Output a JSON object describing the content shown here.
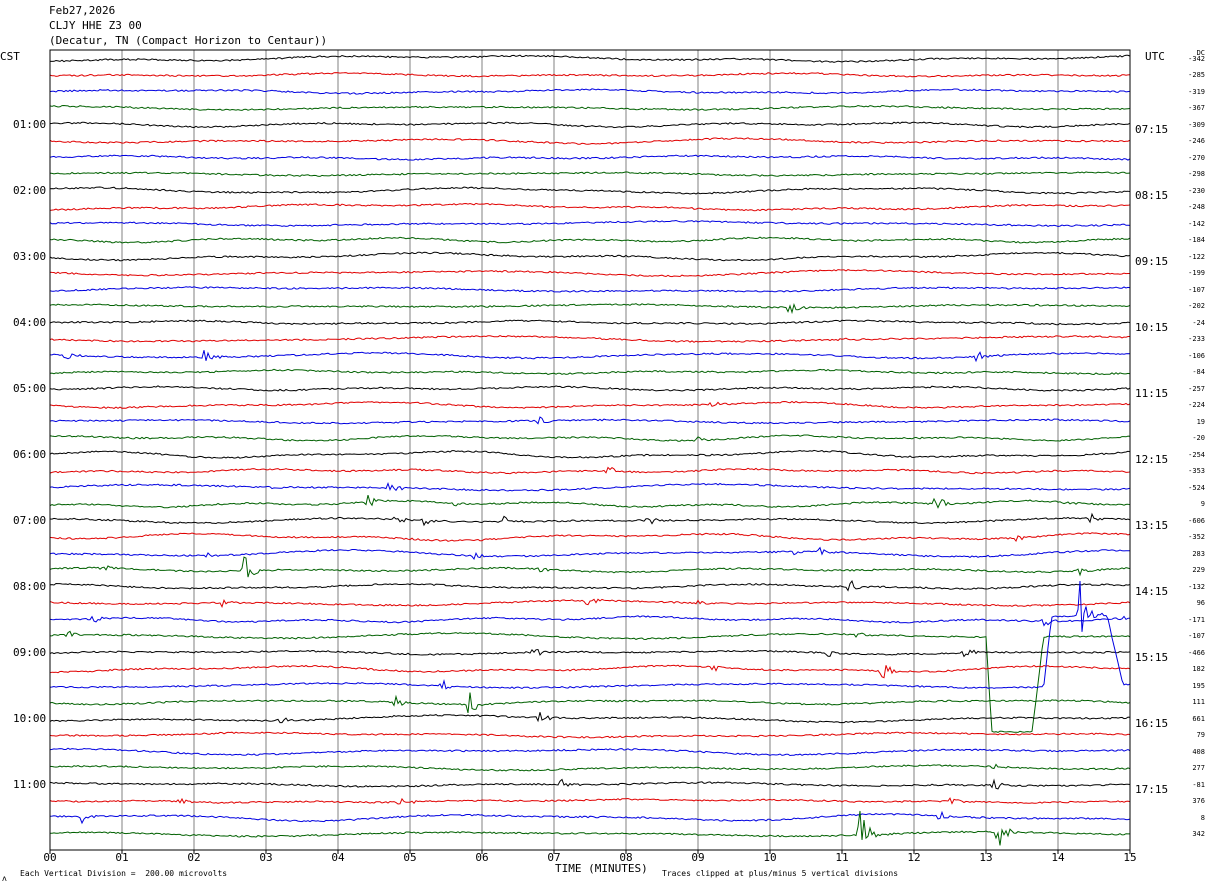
{
  "header": {
    "date": "Feb27,2026",
    "station": "CLJY HHE Z3 00",
    "location": "(Decatur, TN (Compact Horizon to Centaur))"
  },
  "left_axis_label": "CST",
  "right_axis_label": "UTC",
  "dc_label": "DC",
  "footer": {
    "scale_note": "Each Vertical Division =  200.00 microvolts",
    "clip_note": "Traces clipped at plus/minus 5 vertical divisions",
    "corner_mark": "ʌ"
  },
  "colors": {
    "trace_cycle": [
      "#000000",
      "#e00000",
      "#0000e0",
      "#006000"
    ],
    "grid": "#808080",
    "frame": "#000000",
    "background": "#ffffff"
  },
  "chart_data": {
    "type": "line",
    "title": "",
    "xlabel": "TIME (MINUTES)",
    "ylabel": "",
    "xlim": [
      0,
      15
    ],
    "x_ticks": [
      "00",
      "01",
      "02",
      "03",
      "04",
      "05",
      "06",
      "07",
      "08",
      "09",
      "10",
      "11",
      "12",
      "13",
      "14",
      "15"
    ],
    "row_count": 48,
    "row_minutes": 15,
    "vertical_gridlines": true,
    "left_hour_labels": [
      {
        "row": 4,
        "label": "01:00"
      },
      {
        "row": 8,
        "label": "02:00"
      },
      {
        "row": 12,
        "label": "03:00"
      },
      {
        "row": 16,
        "label": "04:00"
      },
      {
        "row": 20,
        "label": "05:00"
      },
      {
        "row": 24,
        "label": "06:00"
      },
      {
        "row": 28,
        "label": "07:00"
      },
      {
        "row": 32,
        "label": "08:00"
      },
      {
        "row": 36,
        "label": "09:00"
      },
      {
        "row": 40,
        "label": "10:00"
      },
      {
        "row": 44,
        "label": "11:00"
      }
    ],
    "right_hour_labels": [
      {
        "row": 4,
        "label": "07:15"
      },
      {
        "row": 8,
        "label": "08:15"
      },
      {
        "row": 12,
        "label": "09:15"
      },
      {
        "row": 16,
        "label": "10:15"
      },
      {
        "row": 20,
        "label": "11:15"
      },
      {
        "row": 24,
        "label": "12:15"
      },
      {
        "row": 28,
        "label": "13:15"
      },
      {
        "row": 32,
        "label": "14:15"
      },
      {
        "row": 36,
        "label": "15:15"
      },
      {
        "row": 40,
        "label": "16:15"
      },
      {
        "row": 44,
        "label": "17:15"
      }
    ],
    "dc_offsets": [
      "-342",
      "-285",
      "-319",
      "-367",
      "-309",
      "-246",
      "-270",
      "-298",
      "-230",
      "-248",
      "-142",
      "-184",
      "-122",
      "-199",
      "-107",
      "-202",
      "-24",
      "-233",
      "-106",
      "-84",
      "-257",
      "-224",
      "19",
      "-20",
      "-254",
      "-353",
      "-524",
      "9",
      "-606",
      "-352",
      "283",
      "229",
      "-132",
      "96",
      "-171",
      "-107",
      "-466",
      "182",
      "195",
      "111",
      "661",
      "79",
      "408",
      "277",
      "-81",
      "376",
      "8",
      "342"
    ],
    "events": [
      {
        "row": 15,
        "minute": 10.25,
        "amp": 9
      },
      {
        "row": 17,
        "minute": 10.95,
        "amp": 4
      },
      {
        "row": 18,
        "minute": 0.2,
        "amp": 6
      },
      {
        "row": 18,
        "minute": 2.15,
        "amp": 12
      },
      {
        "row": 18,
        "minute": 12.85,
        "amp": 7
      },
      {
        "row": 21,
        "minute": 9.2,
        "amp": 6
      },
      {
        "row": 22,
        "minute": 6.8,
        "amp": 5
      },
      {
        "row": 23,
        "minute": 9.0,
        "amp": 6
      },
      {
        "row": 25,
        "minute": 7.75,
        "amp": 6
      },
      {
        "row": 26,
        "minute": 3.1,
        "amp": 4
      },
      {
        "row": 26,
        "minute": 4.7,
        "amp": 6
      },
      {
        "row": 27,
        "minute": 4.4,
        "amp": 9
      },
      {
        "row": 27,
        "minute": 5.6,
        "amp": 5
      },
      {
        "row": 27,
        "minute": 12.3,
        "amp": 12
      },
      {
        "row": 27,
        "minute": 14.1,
        "amp": 5
      },
      {
        "row": 28,
        "minute": 4.8,
        "amp": 5
      },
      {
        "row": 28,
        "minute": 5.2,
        "amp": 6
      },
      {
        "row": 28,
        "minute": 6.3,
        "amp": 9
      },
      {
        "row": 28,
        "minute": 8.3,
        "amp": 6
      },
      {
        "row": 28,
        "minute": 14.45,
        "amp": 7
      },
      {
        "row": 29,
        "minute": 13.4,
        "amp": 5
      },
      {
        "row": 30,
        "minute": 2.15,
        "amp": 6
      },
      {
        "row": 30,
        "minute": 5.9,
        "amp": 6
      },
      {
        "row": 30,
        "minute": 10.35,
        "amp": 5
      },
      {
        "row": 30,
        "minute": 10.7,
        "amp": 7
      },
      {
        "row": 31,
        "minute": 0.7,
        "amp": 6
      },
      {
        "row": 31,
        "minute": 2.7,
        "amp": 16
      },
      {
        "row": 31,
        "minute": 6.8,
        "amp": 4
      },
      {
        "row": 31,
        "minute": 14.3,
        "amp": 6
      },
      {
        "row": 32,
        "minute": 11.1,
        "amp": 9
      },
      {
        "row": 33,
        "minute": 2.4,
        "amp": 6
      },
      {
        "row": 33,
        "minute": 7.45,
        "amp": 7
      },
      {
        "row": 33,
        "minute": 9.0,
        "amp": 4
      },
      {
        "row": 34,
        "minute": 0.6,
        "amp": 5
      },
      {
        "row": 34,
        "minute": 13.8,
        "amp": 6
      },
      {
        "row": 34,
        "minute": 14.85,
        "amp": 4
      },
      {
        "row": 35,
        "minute": 0.25,
        "amp": 6
      },
      {
        "row": 35,
        "minute": 11.2,
        "amp": 4
      },
      {
        "row": 36,
        "minute": 6.7,
        "amp": 6
      },
      {
        "row": 36,
        "minute": 10.8,
        "amp": 6
      },
      {
        "row": 36,
        "minute": 12.7,
        "amp": 7
      },
      {
        "row": 37,
        "minute": 9.2,
        "amp": 6
      },
      {
        "row": 37,
        "minute": 11.55,
        "amp": 12
      },
      {
        "row": 38,
        "minute": 5.4,
        "amp": 10
      },
      {
        "row": 38,
        "minute": 14.3,
        "amp": 40
      },
      {
        "row": 39,
        "minute": 4.8,
        "amp": 7
      },
      {
        "row": 39,
        "minute": 5.8,
        "amp": 22
      },
      {
        "row": 40,
        "minute": 3.2,
        "amp": 4
      },
      {
        "row": 40,
        "minute": 6.8,
        "amp": 6
      },
      {
        "row": 43,
        "minute": 13.05,
        "amp": 6
      },
      {
        "row": 44,
        "minute": 7.1,
        "amp": 6
      },
      {
        "row": 44,
        "minute": 13.1,
        "amp": 7
      },
      {
        "row": 45,
        "minute": 1.8,
        "amp": 6
      },
      {
        "row": 45,
        "minute": 4.85,
        "amp": 7
      },
      {
        "row": 45,
        "minute": 12.5,
        "amp": 4
      },
      {
        "row": 46,
        "minute": 0.45,
        "amp": 8
      },
      {
        "row": 46,
        "minute": 12.35,
        "amp": 7
      },
      {
        "row": 47,
        "minute": 11.25,
        "amp": 30
      },
      {
        "row": 47,
        "minute": 13.15,
        "amp": 26
      }
    ],
    "baseline_excursions": [
      {
        "row": 35,
        "start": 13.0,
        "end": 13.8,
        "depth": 95
      },
      {
        "row": 38,
        "start": 13.8,
        "end": 14.9,
        "depth": -70
      }
    ]
  }
}
